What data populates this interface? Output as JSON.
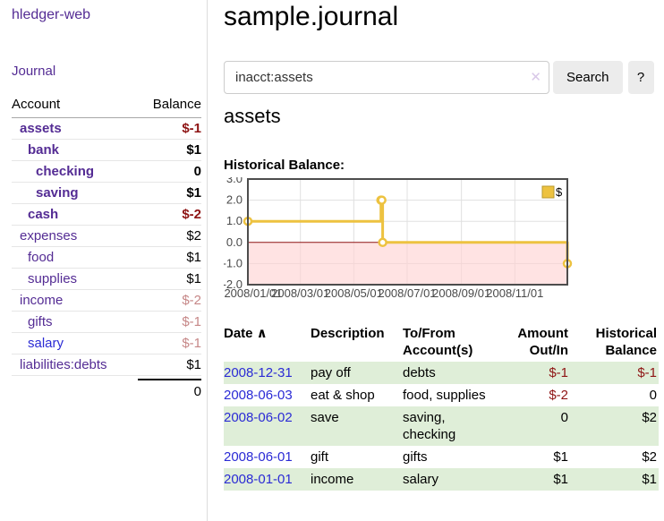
{
  "app": {
    "brand": "hledger-web",
    "nav_journal": "Journal"
  },
  "sidebar": {
    "header": {
      "account": "Account",
      "balance": "Balance"
    },
    "rows": [
      {
        "account": "assets",
        "balance": "$-1",
        "indent": 1,
        "bold": true
      },
      {
        "account": "bank",
        "balance": "$1",
        "indent": 2,
        "bold": true
      },
      {
        "account": "checking",
        "balance": "0",
        "indent": 3,
        "bold": true
      },
      {
        "account": "saving",
        "balance": "$1",
        "indent": 3,
        "bold": true
      },
      {
        "account": "cash",
        "balance": "$-2",
        "indent": 2,
        "bold": true
      },
      {
        "account": "expenses",
        "balance": "$2",
        "indent": 1,
        "bold": false
      },
      {
        "account": "food",
        "balance": "$1",
        "indent": 2,
        "bold": false
      },
      {
        "account": "supplies",
        "balance": "$1",
        "indent": 2,
        "bold": false
      },
      {
        "account": "income",
        "balance": "$-2",
        "indent": 1,
        "bold": false
      },
      {
        "account": "gifts",
        "balance": "$-1",
        "indent": 2,
        "bold": false
      },
      {
        "account": "salary",
        "balance": "$-1",
        "indent": 2,
        "bold": false,
        "link": "blue"
      },
      {
        "account": "liabilities:debts",
        "balance": "$1",
        "indent": 1,
        "bold": false
      }
    ],
    "total": "0"
  },
  "header": {
    "title": "sample.journal"
  },
  "search": {
    "value": "inacct:assets",
    "clear_icon": "✕",
    "button": "Search",
    "help": "?"
  },
  "account_page": {
    "title": "assets",
    "chart_label": "Historical Balance:"
  },
  "chart_data": {
    "type": "line",
    "title": "Historical Balance:",
    "step": true,
    "series": [
      {
        "name": "$",
        "color": "#EDC240",
        "points": [
          [
            "2008-01-01",
            1
          ],
          [
            "2008-06-01",
            2
          ],
          [
            "2008-06-02",
            2
          ],
          [
            "2008-06-03",
            0
          ],
          [
            "2008-12-31",
            -1
          ]
        ]
      }
    ],
    "ylim": [
      -2,
      3
    ],
    "yticks": [
      3.0,
      2.0,
      1.0,
      0.0,
      -1.0,
      -2.0
    ],
    "xticks": [
      "2008/01/01",
      "2008/03/01",
      "2008/05/01",
      "2008/07/01",
      "2008/09/01",
      "2008/11/01"
    ],
    "xrange": [
      "2008-01-01",
      "2008-12-31"
    ],
    "grid": true,
    "negative_region_fill": "#ffd2d2",
    "zero_line_color": "#8e1414",
    "legend": {
      "label": "$",
      "position": "top-right"
    }
  },
  "register": {
    "columns": [
      {
        "label": "Date",
        "sort_icon": "∧"
      },
      {
        "label": "Description"
      },
      {
        "label": "To/From\nAccount(s)"
      },
      {
        "label": "Amount\nOut/In",
        "align": "right"
      },
      {
        "label": "Historical\nBalance",
        "align": "right"
      }
    ],
    "rows": [
      {
        "date": "2008-12-31",
        "description": "pay off",
        "accounts": "debts",
        "amount": "$-1",
        "balance": "$-1"
      },
      {
        "date": "2008-06-03",
        "description": "eat & shop",
        "accounts": "food, supplies",
        "amount": "$-2",
        "balance": "0"
      },
      {
        "date": "2008-06-02",
        "description": "save",
        "accounts": "saving,\nchecking",
        "amount": "0",
        "balance": "$2"
      },
      {
        "date": "2008-06-01",
        "description": "gift",
        "accounts": "gifts",
        "amount": "$1",
        "balance": "$2"
      },
      {
        "date": "2008-01-01",
        "description": "income",
        "accounts": "salary",
        "amount": "$1",
        "balance": "$1"
      }
    ]
  }
}
